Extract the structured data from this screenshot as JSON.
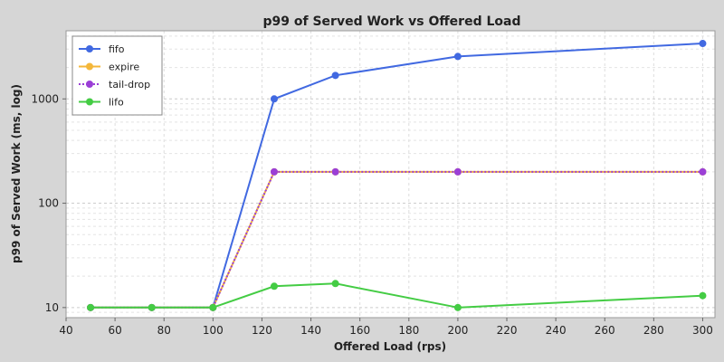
{
  "chart_data": {
    "type": "line",
    "title": "p99 of Served Work vs Offered Load",
    "xlabel": "Offered Load (rps)",
    "ylabel": "p99 of Served Work (ms, log)",
    "y_scale": "log",
    "xlim": [
      40,
      305
    ],
    "ylim": [
      8,
      4500
    ],
    "x_ticks": [
      40,
      60,
      80,
      100,
      120,
      140,
      160,
      180,
      200,
      220,
      240,
      260,
      280,
      300
    ],
    "y_ticks": [
      10,
      100,
      1000
    ],
    "grid": true,
    "legend_position": "top-left",
    "x": [
      50,
      75,
      100,
      125,
      150,
      200,
      300
    ],
    "series": [
      {
        "name": "fifo",
        "color": "#4169e1",
        "style": "solid",
        "values": [
          10,
          10,
          10,
          1000,
          1680,
          2550,
          3400
        ]
      },
      {
        "name": "expire",
        "color": "#f4b73a",
        "style": "solid",
        "values": [
          10,
          10,
          10,
          200,
          200,
          200,
          200
        ]
      },
      {
        "name": "tail-drop",
        "color": "#9b3fd6",
        "style": "dotted",
        "values": [
          10,
          10,
          10,
          200,
          200,
          200,
          200
        ]
      },
      {
        "name": "lifo",
        "color": "#44cc44",
        "style": "solid",
        "values": [
          10,
          10,
          10,
          16,
          17,
          10,
          13
        ]
      }
    ]
  }
}
